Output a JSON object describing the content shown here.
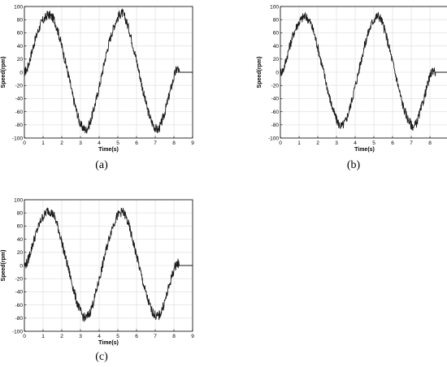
{
  "captions": [
    "(a)",
    "(b)",
    "(c)"
  ],
  "chart_data": [
    {
      "type": "line",
      "panel_label": "(a)",
      "xlabel": "Time(s)",
      "ylabel": "Speed(rpm)",
      "xlim": [
        0,
        9
      ],
      "ylim": [
        -100,
        100
      ],
      "xticks": [
        0,
        1,
        2,
        3,
        4,
        5,
        6,
        7,
        8,
        9
      ],
      "yticks": [
        -100,
        -80,
        -60,
        -40,
        -20,
        0,
        20,
        40,
        60,
        80,
        100
      ],
      "grid": true,
      "series": [
        {
          "color": "#1a1a1a",
          "x": [
            0,
            0.15,
            0.3,
            0.5,
            0.7,
            0.9,
            1.1,
            1.25,
            1.4,
            1.6,
            1.8,
            2.0,
            2.2,
            2.4,
            2.6,
            2.8,
            3.0,
            3.15,
            3.3,
            3.5,
            3.7,
            3.9,
            4.1,
            4.3,
            4.5,
            4.7,
            4.9,
            5.1,
            5.25,
            5.4,
            5.6,
            5.8,
            6.0,
            6.2,
            6.4,
            6.6,
            6.8,
            7.0,
            7.15,
            7.3,
            7.5,
            7.7,
            7.9,
            8.1,
            8.2,
            8.3,
            9.0
          ],
          "y": [
            0,
            5,
            20,
            42,
            60,
            75,
            82,
            88,
            86,
            80,
            62,
            40,
            15,
            -10,
            -38,
            -60,
            -80,
            -85,
            -88,
            -78,
            -58,
            -35,
            -10,
            18,
            42,
            62,
            78,
            88,
            90,
            82,
            65,
            42,
            18,
            -8,
            -35,
            -58,
            -75,
            -85,
            -88,
            -80,
            -62,
            -40,
            -18,
            2,
            6,
            0,
            0
          ]
        }
      ]
    },
    {
      "type": "line",
      "panel_label": "(b)",
      "xlabel": "Time(s)",
      "ylabel": "Speed(rpm)",
      "xlim": [
        0,
        9
      ],
      "ylim": [
        -100,
        100
      ],
      "xticks": [
        0,
        1,
        2,
        3,
        4,
        5,
        6,
        7,
        8,
        9
      ],
      "yticks": [
        -100,
        -80,
        -60,
        -40,
        -20,
        0,
        20,
        40,
        60,
        80,
        100
      ],
      "grid": true,
      "series": [
        {
          "color": "#1a1a1a",
          "x": [
            0,
            0.15,
            0.3,
            0.5,
            0.7,
            0.9,
            1.1,
            1.25,
            1.4,
            1.6,
            1.8,
            2.0,
            2.2,
            2.4,
            2.6,
            2.8,
            3.0,
            3.15,
            3.3,
            3.5,
            3.7,
            3.9,
            4.1,
            4.3,
            4.5,
            4.7,
            4.9,
            5.1,
            5.25,
            5.4,
            5.6,
            5.8,
            6.0,
            6.2,
            6.4,
            6.6,
            6.8,
            7.0,
            7.15,
            7.3,
            7.5,
            7.7,
            7.9,
            8.1,
            8.2,
            8.3,
            9.0
          ],
          "y": [
            0,
            3,
            18,
            40,
            58,
            72,
            80,
            85,
            84,
            76,
            60,
            38,
            14,
            -10,
            -35,
            -56,
            -72,
            -80,
            -82,
            -74,
            -56,
            -33,
            -10,
            16,
            40,
            60,
            75,
            84,
            86,
            80,
            62,
            40,
            16,
            -8,
            -33,
            -55,
            -70,
            -80,
            -83,
            -76,
            -58,
            -38,
            -16,
            2,
            4,
            0,
            0
          ]
        }
      ]
    },
    {
      "type": "line",
      "panel_label": "(c)",
      "xlabel": "Time(s)",
      "ylabel": "Speed(rpm)",
      "xlim": [
        0,
        9
      ],
      "ylim": [
        -100,
        100
      ],
      "xticks": [
        0,
        1,
        2,
        3,
        4,
        5,
        6,
        7,
        8,
        9
      ],
      "yticks": [
        -100,
        -80,
        -60,
        -40,
        -20,
        0,
        20,
        40,
        60,
        80,
        100
      ],
      "grid": true,
      "series": [
        {
          "color": "#1a1a1a",
          "x": [
            0,
            0.15,
            0.3,
            0.5,
            0.7,
            0.9,
            1.1,
            1.25,
            1.4,
            1.6,
            1.8,
            2.0,
            2.2,
            2.4,
            2.6,
            2.8,
            3.0,
            3.15,
            3.3,
            3.5,
            3.7,
            3.9,
            4.1,
            4.3,
            4.5,
            4.7,
            4.9,
            5.1,
            5.25,
            5.4,
            5.6,
            5.8,
            6.0,
            6.2,
            6.4,
            6.6,
            6.8,
            7.0,
            7.15,
            7.3,
            7.5,
            7.7,
            7.9,
            8.1,
            8.2,
            8.3,
            9.0
          ],
          "y": [
            0,
            4,
            18,
            38,
            55,
            70,
            78,
            84,
            82,
            75,
            58,
            36,
            12,
            -10,
            -33,
            -55,
            -70,
            -78,
            -80,
            -72,
            -55,
            -33,
            -10,
            15,
            38,
            58,
            72,
            80,
            82,
            76,
            60,
            38,
            15,
            -8,
            -32,
            -52,
            -68,
            -76,
            -78,
            -72,
            -56,
            -36,
            -15,
            1,
            4,
            0,
            0
          ]
        }
      ]
    }
  ]
}
